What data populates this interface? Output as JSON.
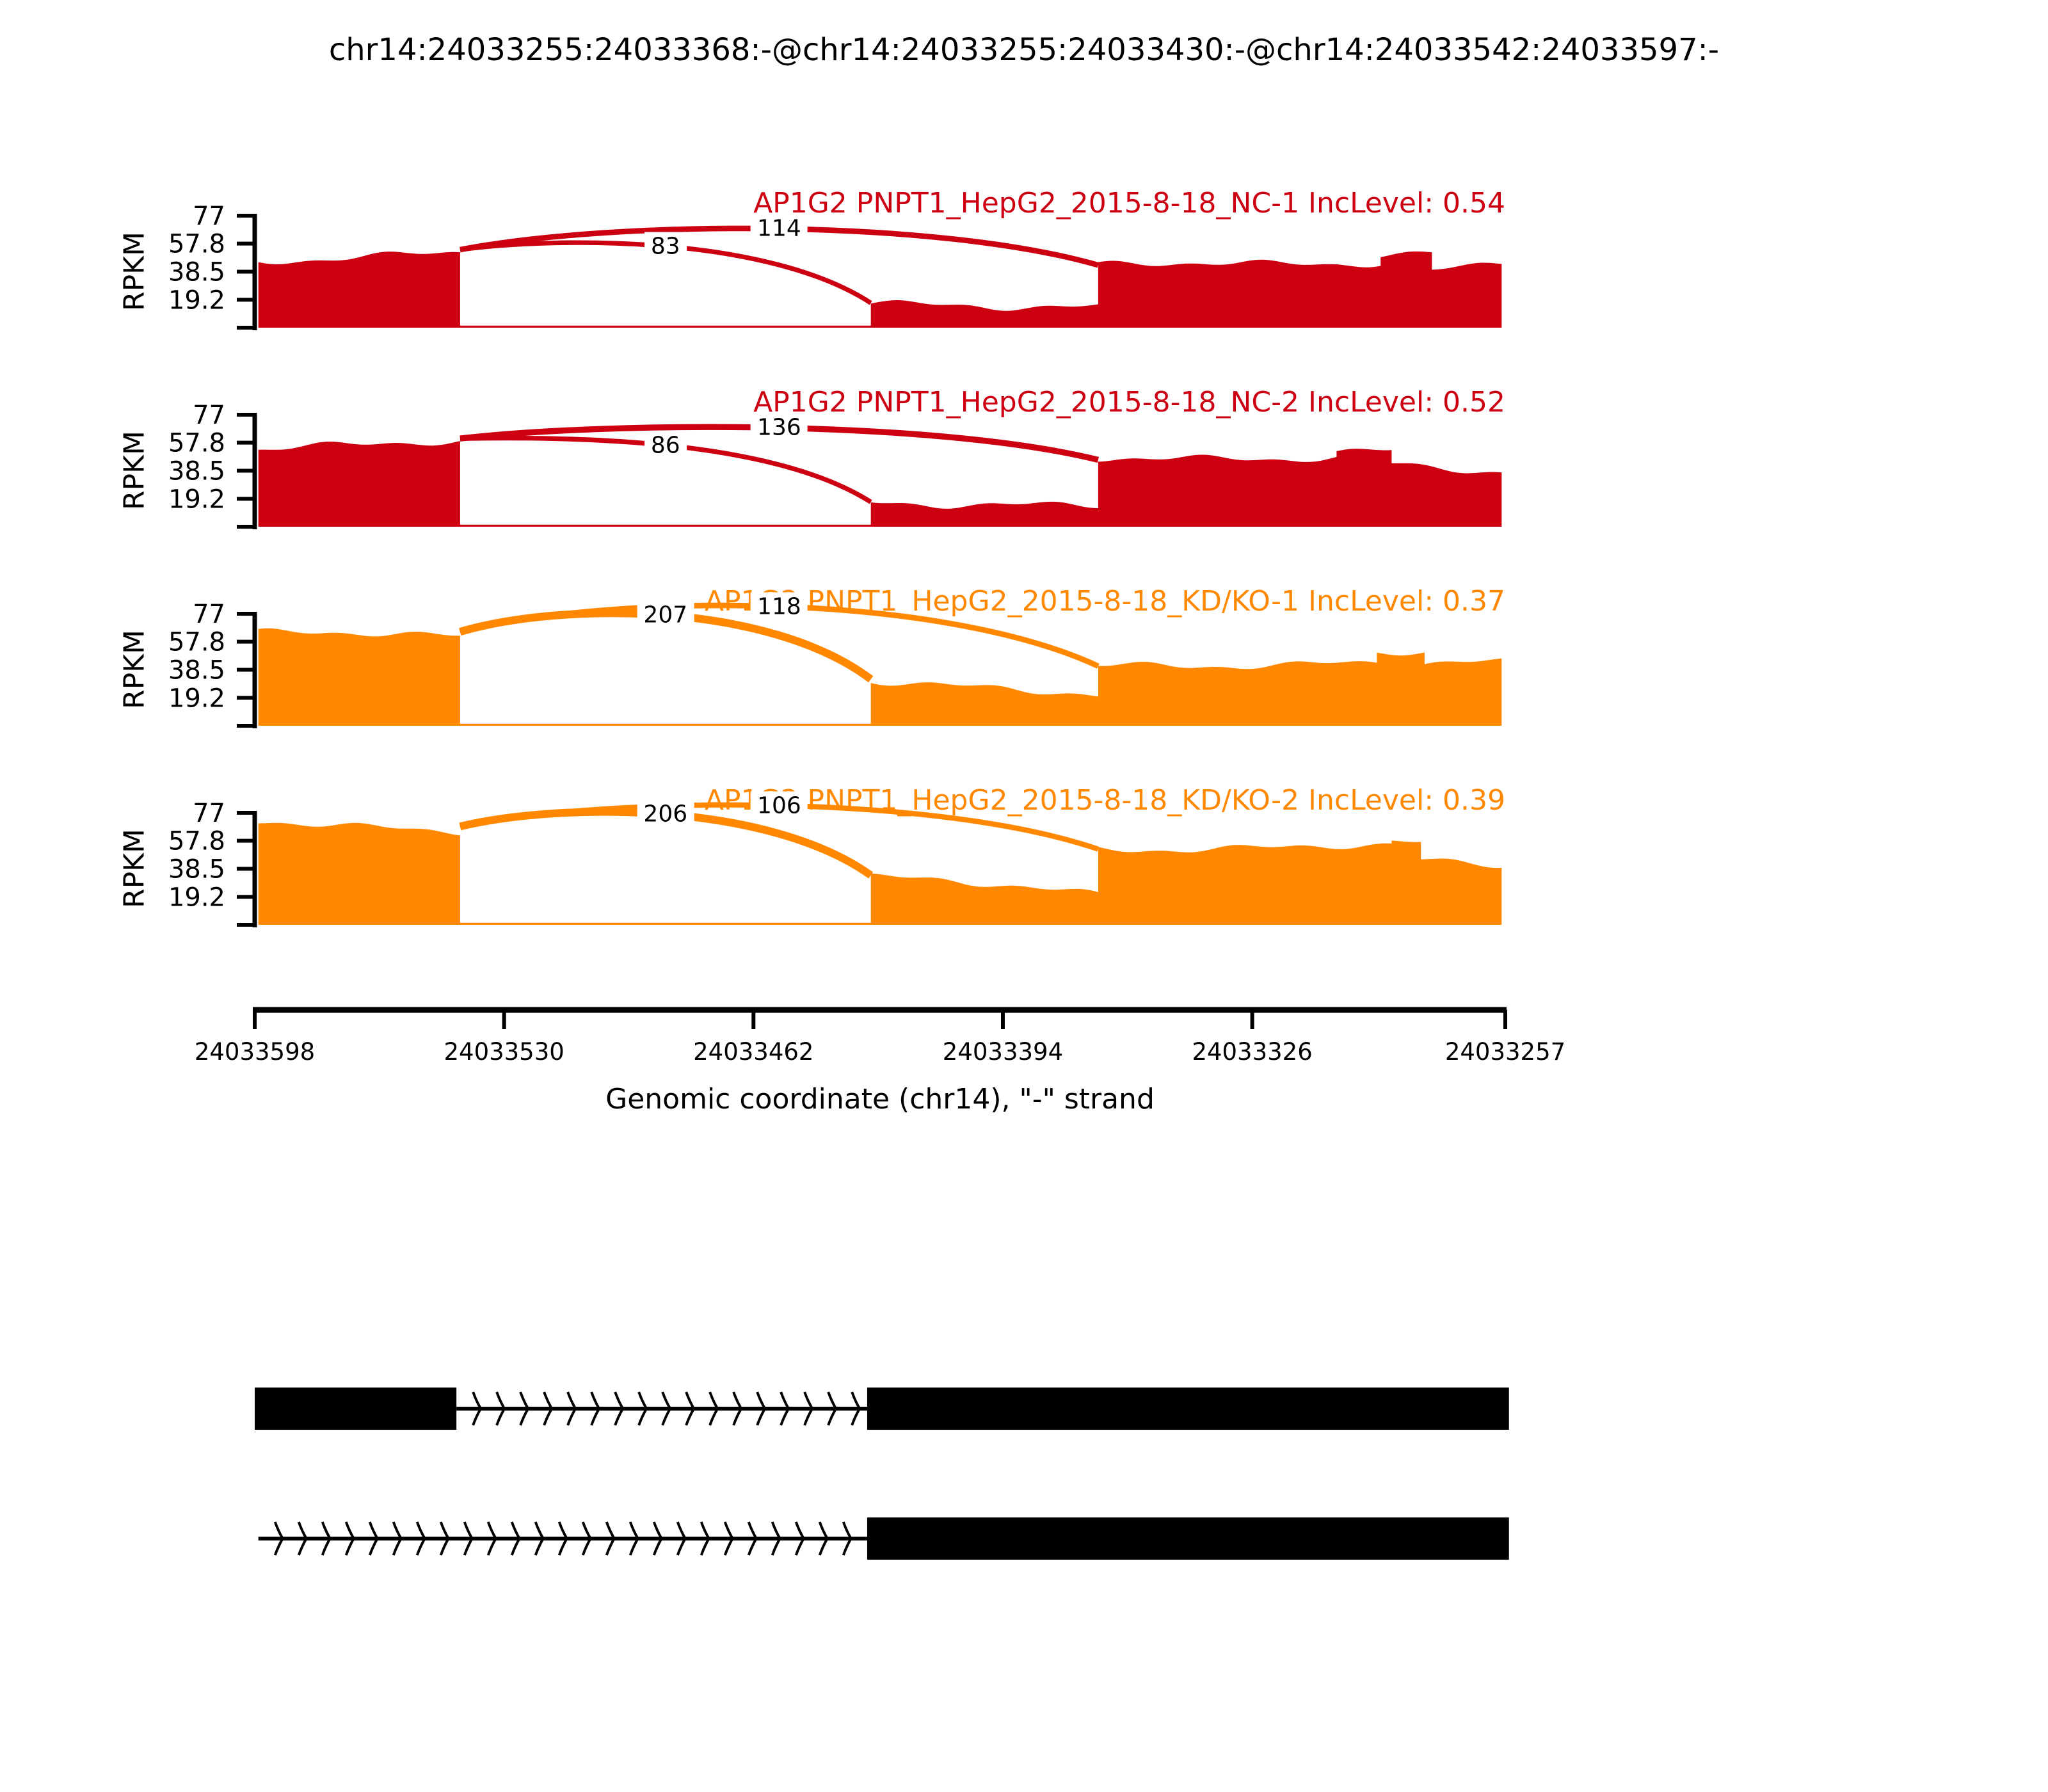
{
  "title": "chr14:24033255:24033368:-@chr14:24033255:24033430:-@chr14:24033542:24033597:-",
  "chart_data": {
    "type": "area",
    "subtype": "sashimi-plot",
    "title": "chr14:24033255:24033368:-@chr14:24033255:24033430:-@chr14:24033542:24033597:-",
    "xlabel": "Genomic coordinate (chr14), \"-\" strand",
    "ylabel": "RPKM",
    "x_domain": [
      24033598,
      24033257
    ],
    "x_axis_reversed": true,
    "x_ticks": [
      24033598,
      24033530,
      24033462,
      24033394,
      24033326,
      24033257
    ],
    "y_ticks": [
      77,
      57.8,
      38.5,
      19.2
    ],
    "y_max": 77,
    "grid": false,
    "colors": {
      "group1": "#CC0011",
      "group2": "#FF8800",
      "gene_model": "#000000",
      "text": "#000000"
    },
    "tracks": [
      {
        "label": "AP1G2 PNPT1_HepG2_2015-8-18_NC-1 IncLevel: 0.54",
        "inc_level": 0.54,
        "color": "#CC0011",
        "coverage_regions": [
          {
            "start": 24033597,
            "end": 24033542,
            "rpkm0": 46,
            "rpkm1": 51
          },
          {
            "start": 24033542,
            "end": 24033430,
            "rpkm0": 1.4,
            "rpkm1": 1.4
          },
          {
            "start": 24033430,
            "end": 24033368,
            "rpkm0": 17,
            "rpkm1": 14
          },
          {
            "start": 24033368,
            "end": 24033291,
            "rpkm0": 43,
            "rpkm1": 45
          },
          {
            "start": 24033291,
            "end": 24033277,
            "rpkm0": 51,
            "rpkm1": 51
          },
          {
            "start": 24033277,
            "end": 24033258,
            "rpkm0": 39,
            "rpkm1": 44
          }
        ],
        "junctions": [
          {
            "start": 24033542,
            "end": 24033430,
            "count": 83,
            "arc_height_rpkm": 56
          },
          {
            "start": 24033542,
            "end": 24033368,
            "count": 114,
            "arc_height_rpkm": 68
          }
        ]
      },
      {
        "label": "AP1G2 PNPT1_HepG2_2015-8-18_NC-2 IncLevel: 0.52",
        "inc_level": 0.52,
        "color": "#CC0011",
        "coverage_regions": [
          {
            "start": 24033597,
            "end": 24033542,
            "rpkm0": 54,
            "rpkm1": 58
          },
          {
            "start": 24033542,
            "end": 24033430,
            "rpkm0": 1.4,
            "rpkm1": 1.4
          },
          {
            "start": 24033430,
            "end": 24033368,
            "rpkm0": 17,
            "rpkm1": 14
          },
          {
            "start": 24033368,
            "end": 24033303,
            "rpkm0": 46,
            "rpkm1": 48
          },
          {
            "start": 24033303,
            "end": 24033288,
            "rpkm0": 52,
            "rpkm1": 52
          },
          {
            "start": 24033288,
            "end": 24033258,
            "rpkm0": 43,
            "rpkm1": 36
          }
        ],
        "junctions": [
          {
            "start": 24033542,
            "end": 24033430,
            "count": 86,
            "arc_height_rpkm": 56
          },
          {
            "start": 24033542,
            "end": 24033368,
            "count": 136,
            "arc_height_rpkm": 68
          }
        ]
      },
      {
        "label": "AP1G2 PNPT1_HepG2_2015-8-18_KD/KO-1 IncLevel: 0.37",
        "inc_level": 0.37,
        "color": "#FF8800",
        "coverage_regions": [
          {
            "start": 24033597,
            "end": 24033542,
            "rpkm0": 64,
            "rpkm1": 62
          },
          {
            "start": 24033542,
            "end": 24033430,
            "rpkm0": 1.4,
            "rpkm1": 1.4
          },
          {
            "start": 24033430,
            "end": 24033368,
            "rpkm0": 32,
            "rpkm1": 20
          },
          {
            "start": 24033368,
            "end": 24033292,
            "rpkm0": 41,
            "rpkm1": 43
          },
          {
            "start": 24033292,
            "end": 24033279,
            "rpkm0": 50,
            "rpkm1": 50
          },
          {
            "start": 24033279,
            "end": 24033258,
            "rpkm0": 42,
            "rpkm1": 44
          }
        ],
        "junctions": [
          {
            "start": 24033542,
            "end": 24033430,
            "count": 207,
            "arc_height_rpkm": 76
          },
          {
            "start": 24033542,
            "end": 24033368,
            "count": 118,
            "arc_height_rpkm": 82
          }
        ]
      },
      {
        "label": "AP1G2 PNPT1_HepG2_2015-8-18_KD/KO-2 IncLevel: 0.39",
        "inc_level": 0.39,
        "color": "#FF8800",
        "coverage_regions": [
          {
            "start": 24033597,
            "end": 24033542,
            "rpkm0": 70,
            "rpkm1": 65
          },
          {
            "start": 24033542,
            "end": 24033430,
            "rpkm0": 1.4,
            "rpkm1": 1.4
          },
          {
            "start": 24033430,
            "end": 24033368,
            "rpkm0": 34,
            "rpkm1": 21
          },
          {
            "start": 24033368,
            "end": 24033288,
            "rpkm0": 52,
            "rpkm1": 54
          },
          {
            "start": 24033288,
            "end": 24033280,
            "rpkm0": 56,
            "rpkm1": 56
          },
          {
            "start": 24033280,
            "end": 24033258,
            "rpkm0": 44,
            "rpkm1": 42
          }
        ],
        "junctions": [
          {
            "start": 24033542,
            "end": 24033430,
            "count": 206,
            "arc_height_rpkm": 76
          },
          {
            "start": 24033542,
            "end": 24033368,
            "count": 106,
            "arc_height_rpkm": 82
          }
        ]
      }
    ],
    "gene_model": {
      "rows": [
        {
          "segments": [
            {
              "kind": "exon",
              "from": 24033598,
              "to": 24033543
            },
            {
              "kind": "intron",
              "from": 24033543,
              "to": 24033431
            },
            {
              "kind": "exon",
              "from": 24033431,
              "to": 24033256
            }
          ]
        },
        {
          "segments": [
            {
              "kind": "intron",
              "from": 24033597,
              "to": 24033431
            },
            {
              "kind": "exon",
              "from": 24033431,
              "to": 24033256
            }
          ]
        }
      ]
    }
  }
}
